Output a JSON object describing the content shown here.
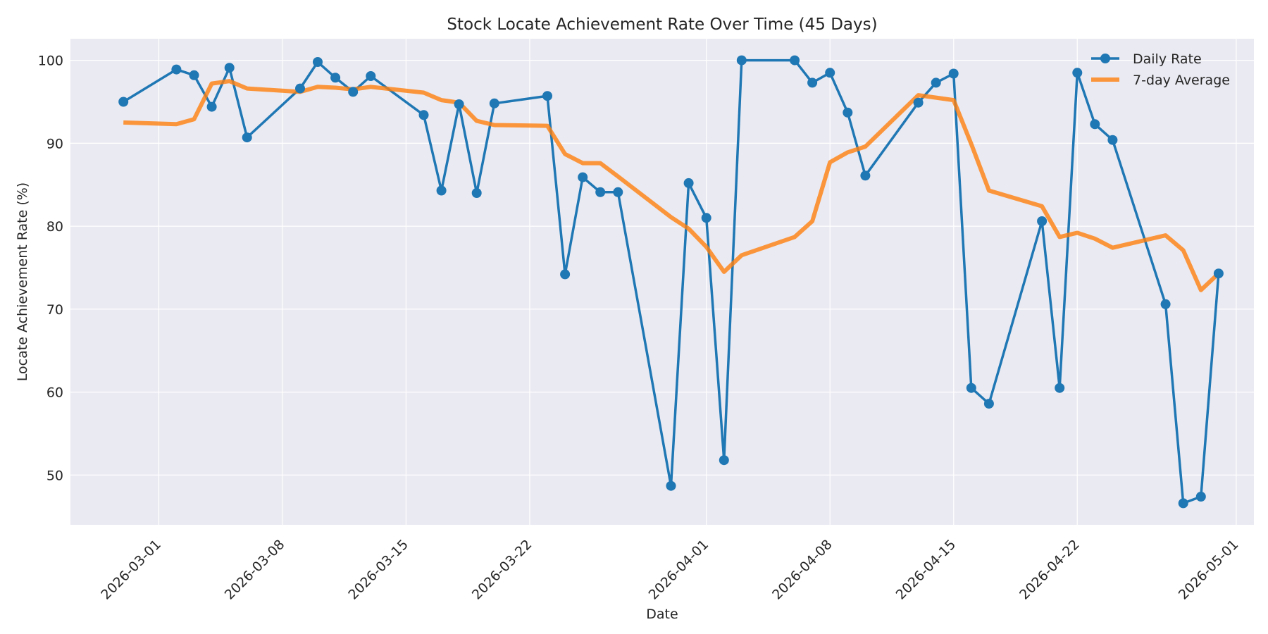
{
  "chart_data": {
    "type": "line",
    "title": "Stock Locate Achievement Rate Over Time (45 Days)",
    "xlabel": "Date",
    "ylabel": "Locate Achievement Rate (%)",
    "xlim": [
      "2026-02-24",
      "2026-05-02"
    ],
    "ylim": [
      44,
      102.6
    ],
    "x_ticks": [
      "2026-03-01",
      "2026-03-08",
      "2026-03-15",
      "2026-03-22",
      "2026-04-01",
      "2026-04-08",
      "2026-04-15",
      "2026-04-22",
      "2026-05-01"
    ],
    "y_ticks": [
      50,
      60,
      70,
      80,
      90,
      100
    ],
    "grid": true,
    "legend_position": "top-right",
    "colors": {
      "background": "#eaeaf2",
      "grid": "#ffffff",
      "daily": "#1f77b4",
      "average": "#ff7f0e"
    },
    "x": [
      "2026-02-27",
      "2026-03-02",
      "2026-03-03",
      "2026-03-04",
      "2026-03-05",
      "2026-03-06",
      "2026-03-09",
      "2026-03-10",
      "2026-03-11",
      "2026-03-12",
      "2026-03-13",
      "2026-03-16",
      "2026-03-17",
      "2026-03-18",
      "2026-03-19",
      "2026-03-20",
      "2026-03-23",
      "2026-03-24",
      "2026-03-25",
      "2026-03-26",
      "2026-03-27",
      "2026-03-30",
      "2026-03-31",
      "2026-04-01",
      "2026-04-02",
      "2026-04-03",
      "2026-04-06",
      "2026-04-07",
      "2026-04-08",
      "2026-04-09",
      "2026-04-10",
      "2026-04-13",
      "2026-04-14",
      "2026-04-15",
      "2026-04-16",
      "2026-04-17",
      "2026-04-20",
      "2026-04-21",
      "2026-04-22",
      "2026-04-23",
      "2026-04-24",
      "2026-04-27",
      "2026-04-28",
      "2026-04-29",
      "2026-04-30"
    ],
    "series": [
      {
        "name": "Daily Rate",
        "style": "line-with-markers",
        "values": [
          95.0,
          98.9,
          98.2,
          94.4,
          99.1,
          90.7,
          96.6,
          99.8,
          97.9,
          96.2,
          98.1,
          93.4,
          84.3,
          94.7,
          84.0,
          94.8,
          95.7,
          74.2,
          85.9,
          84.1,
          84.1,
          48.7,
          85.2,
          81.0,
          51.8,
          100.0,
          100.0,
          97.3,
          98.5,
          93.7,
          86.1,
          94.9,
          97.3,
          98.4,
          60.5,
          58.6,
          80.6,
          60.5,
          98.5,
          92.3,
          90.4,
          70.6,
          46.6,
          47.4,
          74.3
        ]
      },
      {
        "name": "7-day Average",
        "style": "line",
        "values": [
          92.5,
          92.3,
          92.9,
          97.2,
          97.5,
          96.6,
          96.2,
          96.8,
          96.7,
          96.5,
          96.8,
          96.1,
          95.2,
          94.9,
          92.7,
          92.2,
          92.1,
          88.7,
          87.6,
          87.6,
          86.0,
          81.1,
          79.7,
          77.5,
          74.5,
          76.5,
          78.7,
          80.6,
          87.7,
          88.9,
          89.6,
          95.8,
          95.5,
          95.2,
          89.9,
          84.3,
          82.4,
          78.7,
          79.2,
          78.5,
          77.4,
          78.9,
          77.1,
          72.3,
          74.3
        ]
      }
    ]
  }
}
